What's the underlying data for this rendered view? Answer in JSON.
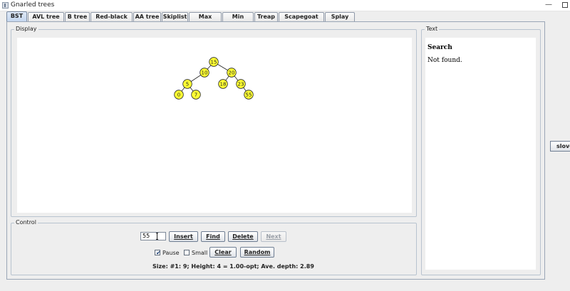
{
  "window": {
    "title": "Gnarled trees",
    "icon": "app-icon",
    "minimize_glyph": "—",
    "maximize_glyph": ""
  },
  "tabs": [
    {
      "label": "BST",
      "active": true
    },
    {
      "label": "AVL tree"
    },
    {
      "label": "B tree"
    },
    {
      "label": "Red-black tree"
    },
    {
      "label": "AA tree"
    },
    {
      "label": "Skiplist"
    },
    {
      "label": "Max Heap"
    },
    {
      "label": "Min Heap"
    },
    {
      "label": "Treap"
    },
    {
      "label": "Scapegoat tree"
    },
    {
      "label": "Splay tree"
    }
  ],
  "display": {
    "label": "Display",
    "node_color": "#ffff33",
    "tree": {
      "nodes": [
        {
          "id": "n15",
          "key": "15"
        },
        {
          "id": "n10",
          "key": "10"
        },
        {
          "id": "n20",
          "key": "20"
        },
        {
          "id": "n5",
          "key": "5"
        },
        {
          "id": "n18",
          "key": "18"
        },
        {
          "id": "n23",
          "key": "23"
        },
        {
          "id": "n0",
          "key": "0"
        },
        {
          "id": "n7",
          "key": "7"
        },
        {
          "id": "n55",
          "key": "55"
        }
      ],
      "edges": [
        [
          "n15",
          "n10"
        ],
        [
          "n15",
          "n20"
        ],
        [
          "n10",
          "n5"
        ],
        [
          "n20",
          "n18"
        ],
        [
          "n20",
          "n23"
        ],
        [
          "n5",
          "n0"
        ],
        [
          "n5",
          "n7"
        ],
        [
          "n23",
          "n55"
        ]
      ]
    }
  },
  "text_panel": {
    "label": "Text",
    "heading": "Search",
    "message": "Not found."
  },
  "control": {
    "label": "Control",
    "input_value": "55",
    "buttons": {
      "insert": "Insert",
      "find": "Find",
      "delete": "Delete",
      "next": "Next",
      "clear": "Clear",
      "random": "Random"
    },
    "pause": {
      "label": "Pause",
      "checked": true
    },
    "small": {
      "label": "Small",
      "checked": false
    },
    "stats": "Size: #1: 9;   Height: 4 =  1.00-opt;   Ave. depth: 2.89"
  },
  "side_button": {
    "label": "slove"
  }
}
